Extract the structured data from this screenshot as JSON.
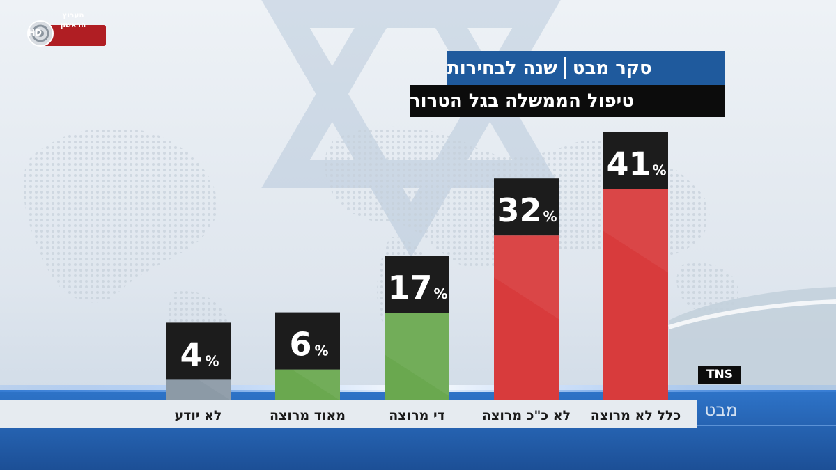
{
  "channel": {
    "logo_line1": "הערוץ",
    "logo_line2": "הראשון",
    "logo_badge": "HD"
  },
  "header": {
    "title_left": "סקר מבט",
    "title_right": "שנה לבחירות",
    "subtitle": "טיפול הממשלה בגל הטרור"
  },
  "source": {
    "pollster": "TNS",
    "program": "מבט"
  },
  "colors": {
    "negative": "#d83b3c",
    "positive": "#6aa84f",
    "neutral": "#8c9aa6",
    "label_box": "#1c1c1c",
    "title_box": "#1f5a9d",
    "subtitle_box": "#0c0c0c"
  },
  "chart_data": {
    "type": "bar",
    "title": "טיפול הממשלה בגל הטרור",
    "categories": [
      "כלל לא מרוצה",
      "לא כ\"כ מרוצה",
      "די מרוצה",
      "מאוד מרוצה",
      "לא יודע"
    ],
    "values": [
      41,
      32,
      17,
      6,
      4
    ],
    "unit": "%",
    "value_labels": [
      "41",
      "32",
      "17",
      "6",
      "4"
    ],
    "bar_colors": [
      "negative",
      "negative",
      "positive",
      "positive",
      "neutral"
    ],
    "ylim": [
      0,
      45
    ],
    "grid": false,
    "legend": "none",
    "xlabel": "",
    "ylabel": ""
  }
}
